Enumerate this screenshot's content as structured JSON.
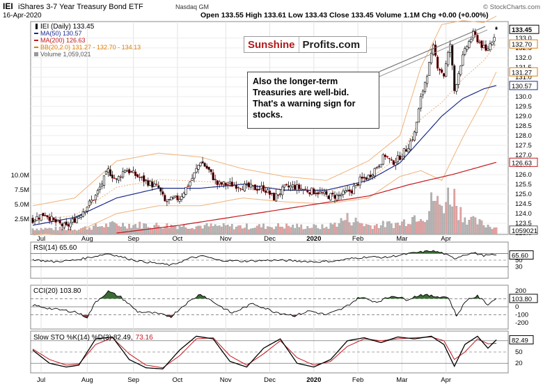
{
  "header": {
    "symbol": "IEI",
    "name": "iShares 3-7 Year Treasury Bond ETF",
    "exchange": "Nasdaq GM",
    "date": "16-Apr-2020",
    "quote": "Open 133.55  High 133.61  Low 133.43  Close 133.45  Volume 1.1M  Chg +0.00 (+0.00%)",
    "watermark": "© StockCharts.com"
  },
  "legend": [
    {
      "text": "IEI (Daily) 133.45",
      "color": "#000000"
    },
    {
      "text": "MA(50) 130.57",
      "color": "#1a2a8c"
    },
    {
      "text": "MA(200) 126.63",
      "color": "#c4161c"
    },
    {
      "text": "BB(20,2.0) 131.27 - 132.70 - 134.13",
      "color": "#e07b00"
    },
    {
      "text": "Volume 1,059,021",
      "color": "#555555"
    }
  ],
  "brand": {
    "part1": "Sunshine",
    "part2": "Profits.com"
  },
  "callout": {
    "line1": "Also the longer-term",
    "line2": "Treasuries are well-bid.",
    "line3": "That's a warning sign for",
    "line4": "stocks."
  },
  "price_axis": {
    "ticks": [
      "133.0",
      "132.5",
      "132.0",
      "131.5",
      "131.0",
      "130.5",
      "130.0",
      "129.5",
      "129.0",
      "128.5",
      "128.0",
      "127.5",
      "127.0",
      "126.5",
      "126.0",
      "125.5",
      "125.0",
      "124.5",
      "124.0",
      "123.5",
      "123.0"
    ],
    "badges": [
      {
        "text": "133.45",
        "value": 133.45,
        "color": "#000000",
        "bold": true
      },
      {
        "text": "132.70",
        "value": 132.7,
        "color": "#e07b00"
      },
      {
        "text": "131.27",
        "value": 131.27,
        "color": "#e07b00"
      },
      {
        "text": "130.57",
        "value": 130.57,
        "color": "#1a2a8c"
      },
      {
        "text": "126.63",
        "value": 126.63,
        "color": "#c4161c"
      },
      {
        "text": "1059021",
        "value": 123.15,
        "color": "#555555"
      }
    ]
  },
  "volume_axis": {
    "ticks": [
      "10.0M",
      "7.5M",
      "5.0M",
      "2.5M"
    ]
  },
  "month_labels": [
    "Jul",
    "Aug",
    "Sep",
    "Oct",
    "Nov",
    "Dec",
    "2020",
    "Feb",
    "Mar",
    "Apr"
  ],
  "indicators": {
    "rsi": {
      "title": "RSI(14) 65.60",
      "badge": "65.60",
      "ticks": [
        "70",
        "50",
        "30"
      ],
      "color": "#3a6b35"
    },
    "cci": {
      "title": "CCI(20) 103.80",
      "badge": "103.80",
      "ticks": [
        "200",
        "100",
        "0",
        "-100",
        "-200"
      ],
      "color": "#3a6b35",
      "neg_color": "#8b3a3a"
    },
    "sto": {
      "title": "Slow STO %K(14) %D(3) 82.49,",
      "title_d": "73.16",
      "badge_k": "82.49",
      "ticks": [
        "80",
        "50",
        "20"
      ]
    }
  },
  "chart_data": [
    {
      "type": "candlestick",
      "title": "IEI iShares 3-7 Year Treasury Bond ETF (Daily)",
      "months": [
        "Jul",
        "Aug",
        "Sep",
        "Oct",
        "Nov",
        "Dec",
        "2020",
        "Feb",
        "Mar",
        "Apr"
      ],
      "ylim": [
        123.0,
        133.6
      ],
      "close_path": [
        [
          0,
          123.7
        ],
        [
          6,
          124.0
        ],
        [
          10,
          123.6
        ],
        [
          16,
          123.3
        ],
        [
          22,
          123.9
        ],
        [
          30,
          124.9
        ],
        [
          36,
          126.2
        ],
        [
          40,
          125.7
        ],
        [
          44,
          126.3
        ],
        [
          50,
          125.9
        ],
        [
          55,
          125.6
        ],
        [
          60,
          125.3
        ],
        [
          63,
          124.6
        ],
        [
          70,
          124.8
        ],
        [
          76,
          125.8
        ],
        [
          80,
          126.7
        ],
        [
          84,
          126.2
        ],
        [
          88,
          125.5
        ],
        [
          94,
          125.5
        ],
        [
          100,
          125.4
        ],
        [
          106,
          125.3
        ],
        [
          110,
          125.3
        ],
        [
          115,
          124.8
        ],
        [
          120,
          125.3
        ],
        [
          124,
          125.4
        ],
        [
          130,
          125.2
        ],
        [
          136,
          125.1
        ],
        [
          140,
          124.9
        ],
        [
          145,
          124.9
        ],
        [
          148,
          125.0
        ],
        [
          152,
          125.2
        ],
        [
          156,
          125.7
        ],
        [
          160,
          125.9
        ],
        [
          164,
          126.4
        ],
        [
          168,
          127.0
        ],
        [
          171,
          126.6
        ],
        [
          174,
          126.8
        ],
        [
          178,
          127.3
        ],
        [
          182,
          128.1
        ],
        [
          185,
          129.9
        ],
        [
          188,
          131.2
        ],
        [
          191,
          132.5
        ],
        [
          193,
          131.6
        ],
        [
          196,
          131.1
        ],
        [
          199,
          132.7
        ],
        [
          201,
          130.3
        ],
        [
          204,
          131.7
        ],
        [
          207,
          132.6
        ],
        [
          210,
          133.2
        ],
        [
          213,
          132.8
        ],
        [
          216,
          132.3
        ],
        [
          219,
          132.9
        ],
        [
          221,
          133.45
        ]
      ],
      "ma50_path": [
        [
          0,
          123.4
        ],
        [
          20,
          123.8
        ],
        [
          40,
          124.8
        ],
        [
          60,
          125.3
        ],
        [
          80,
          125.3
        ],
        [
          100,
          125.5
        ],
        [
          120,
          125.2
        ],
        [
          140,
          125.2
        ],
        [
          160,
          125.7
        ],
        [
          175,
          126.6
        ],
        [
          185,
          127.8
        ],
        [
          195,
          129.0
        ],
        [
          205,
          129.9
        ],
        [
          215,
          130.4
        ],
        [
          221,
          130.57
        ]
      ],
      "ma200_path": [
        [
          40,
          123.0
        ],
        [
          70,
          123.4
        ],
        [
          100,
          123.9
        ],
        [
          130,
          124.4
        ],
        [
          160,
          124.9
        ],
        [
          180,
          125.5
        ],
        [
          200,
          126.0
        ],
        [
          221,
          126.63
        ]
      ],
      "bb_upper_path": [
        [
          0,
          124.4
        ],
        [
          20,
          124.8
        ],
        [
          40,
          126.7
        ],
        [
          60,
          127.1
        ],
        [
          80,
          126.9
        ],
        [
          100,
          126.3
        ],
        [
          120,
          125.9
        ],
        [
          140,
          125.7
        ],
        [
          160,
          126.7
        ],
        [
          175,
          128.0
        ],
        [
          185,
          131.5
        ],
        [
          195,
          133.7
        ],
        [
          205,
          133.9
        ],
        [
          215,
          133.8
        ],
        [
          221,
          134.13
        ]
      ],
      "bb_lower_path": [
        [
          0,
          122.9
        ],
        [
          20,
          123.0
        ],
        [
          40,
          124.0
        ],
        [
          60,
          124.4
        ],
        [
          80,
          124.4
        ],
        [
          100,
          124.8
        ],
        [
          120,
          124.6
        ],
        [
          140,
          124.5
        ],
        [
          160,
          124.8
        ],
        [
          175,
          125.9
        ],
        [
          185,
          126.2
        ],
        [
          195,
          125.7
        ],
        [
          205,
          127.9
        ],
        [
          215,
          129.9
        ],
        [
          221,
          131.27
        ]
      ],
      "latest": {
        "open": 133.55,
        "high": 133.61,
        "low": 133.43,
        "close": 133.45,
        "ma50": 130.57,
        "ma200": 126.63,
        "bb_lower": 131.27,
        "bb_mid": 132.7,
        "bb_upper": 134.13
      }
    },
    {
      "type": "bar",
      "title": "Volume",
      "ylim": [
        0,
        12000000
      ],
      "latest": 1059021,
      "volume_path_millions": [
        [
          0,
          0.9
        ],
        [
          20,
          0.8
        ],
        [
          40,
          1.6
        ],
        [
          60,
          1.4
        ],
        [
          80,
          1.3
        ],
        [
          100,
          1.2
        ],
        [
          120,
          1.3
        ],
        [
          140,
          1.1
        ],
        [
          150,
          2.6
        ],
        [
          160,
          1.4
        ],
        [
          175,
          1.7
        ],
        [
          185,
          3.6
        ],
        [
          188,
          2.8
        ],
        [
          191,
          6.4
        ],
        [
          194,
          4.5
        ],
        [
          197,
          5.8
        ],
        [
          200,
          7.2
        ],
        [
          203,
          4.2
        ],
        [
          206,
          2.9
        ],
        [
          210,
          2.1
        ],
        [
          215,
          1.6
        ],
        [
          221,
          1.06
        ]
      ]
    },
    {
      "type": "line",
      "title": "RSI(14)",
      "ylim": [
        0,
        100
      ],
      "latest": 65.6,
      "path": [
        [
          0,
          52
        ],
        [
          10,
          45
        ],
        [
          20,
          50
        ],
        [
          30,
          62
        ],
        [
          36,
          70
        ],
        [
          42,
          60
        ],
        [
          50,
          48
        ],
        [
          60,
          40
        ],
        [
          66,
          35
        ],
        [
          76,
          58
        ],
        [
          82,
          62
        ],
        [
          88,
          50
        ],
        [
          100,
          47
        ],
        [
          115,
          50
        ],
        [
          125,
          48
        ],
        [
          135,
          45
        ],
        [
          145,
          48
        ],
        [
          152,
          55
        ],
        [
          160,
          60
        ],
        [
          168,
          58
        ],
        [
          175,
          65
        ],
        [
          182,
          72
        ],
        [
          190,
          78
        ],
        [
          195,
          72
        ],
        [
          201,
          55
        ],
        [
          205,
          65
        ],
        [
          210,
          72
        ],
        [
          215,
          64
        ],
        [
          221,
          65.6
        ]
      ]
    },
    {
      "type": "line",
      "title": "CCI(20)",
      "ylim": [
        -250,
        250
      ],
      "latest": 103.8,
      "path": [
        [
          0,
          20
        ],
        [
          10,
          -30
        ],
        [
          20,
          -60
        ],
        [
          26,
          -130
        ],
        [
          30,
          60
        ],
        [
          36,
          190
        ],
        [
          42,
          120
        ],
        [
          50,
          -60
        ],
        [
          58,
          -80
        ],
        [
          66,
          -120
        ],
        [
          72,
          20
        ],
        [
          80,
          160
        ],
        [
          88,
          30
        ],
        [
          95,
          -80
        ],
        [
          105,
          40
        ],
        [
          115,
          -60
        ],
        [
          125,
          -110
        ],
        [
          132,
          -50
        ],
        [
          140,
          -100
        ],
        [
          148,
          -20
        ],
        [
          156,
          120
        ],
        [
          164,
          60
        ],
        [
          172,
          140
        ],
        [
          178,
          90
        ],
        [
          185,
          150
        ],
        [
          191,
          130
        ],
        [
          198,
          120
        ],
        [
          202,
          -110
        ],
        [
          207,
          90
        ],
        [
          212,
          130
        ],
        [
          217,
          30
        ],
        [
          221,
          103.8
        ]
      ]
    },
    {
      "type": "line",
      "title": "Slow STO %K(14) %D(3)",
      "ylim": [
        0,
        100
      ],
      "series": [
        {
          "name": "%K",
          "latest": 82.49,
          "path": [
            [
              0,
              55
            ],
            [
              8,
              20
            ],
            [
              16,
              10
            ],
            [
              22,
              15
            ],
            [
              30,
              85
            ],
            [
              38,
              90
            ],
            [
              46,
              30
            ],
            [
              54,
              8
            ],
            [
              62,
              5
            ],
            [
              70,
              55
            ],
            [
              78,
              92
            ],
            [
              86,
              85
            ],
            [
              94,
              25
            ],
            [
              102,
              10
            ],
            [
              110,
              60
            ],
            [
              118,
              85
            ],
            [
              126,
              20
            ],
            [
              134,
              10
            ],
            [
              142,
              30
            ],
            [
              150,
              80
            ],
            [
              158,
              88
            ],
            [
              166,
              75
            ],
            [
              174,
              90
            ],
            [
              182,
              85
            ],
            [
              190,
              92
            ],
            [
              196,
              70
            ],
            [
              201,
              12
            ],
            [
              206,
              70
            ],
            [
              212,
              92
            ],
            [
              217,
              60
            ],
            [
              221,
              82.49
            ]
          ]
        },
        {
          "name": "%D",
          "latest": 73.16,
          "path": [
            [
              0,
              58
            ],
            [
              8,
              30
            ],
            [
              16,
              15
            ],
            [
              22,
              18
            ],
            [
              30,
              70
            ],
            [
              38,
              88
            ],
            [
              46,
              45
            ],
            [
              54,
              15
            ],
            [
              62,
              8
            ],
            [
              70,
              40
            ],
            [
              78,
              85
            ],
            [
              86,
              88
            ],
            [
              94,
              40
            ],
            [
              102,
              15
            ],
            [
              110,
              45
            ],
            [
              118,
              80
            ],
            [
              126,
              35
            ],
            [
              134,
              15
            ],
            [
              142,
              25
            ],
            [
              150,
              65
            ],
            [
              158,
              85
            ],
            [
              166,
              80
            ],
            [
              174,
              85
            ],
            [
              182,
              88
            ],
            [
              190,
              90
            ],
            [
              196,
              80
            ],
            [
              201,
              30
            ],
            [
              206,
              50
            ],
            [
              212,
              85
            ],
            [
              217,
              72
            ],
            [
              221,
              73.16
            ]
          ]
        }
      ]
    }
  ]
}
